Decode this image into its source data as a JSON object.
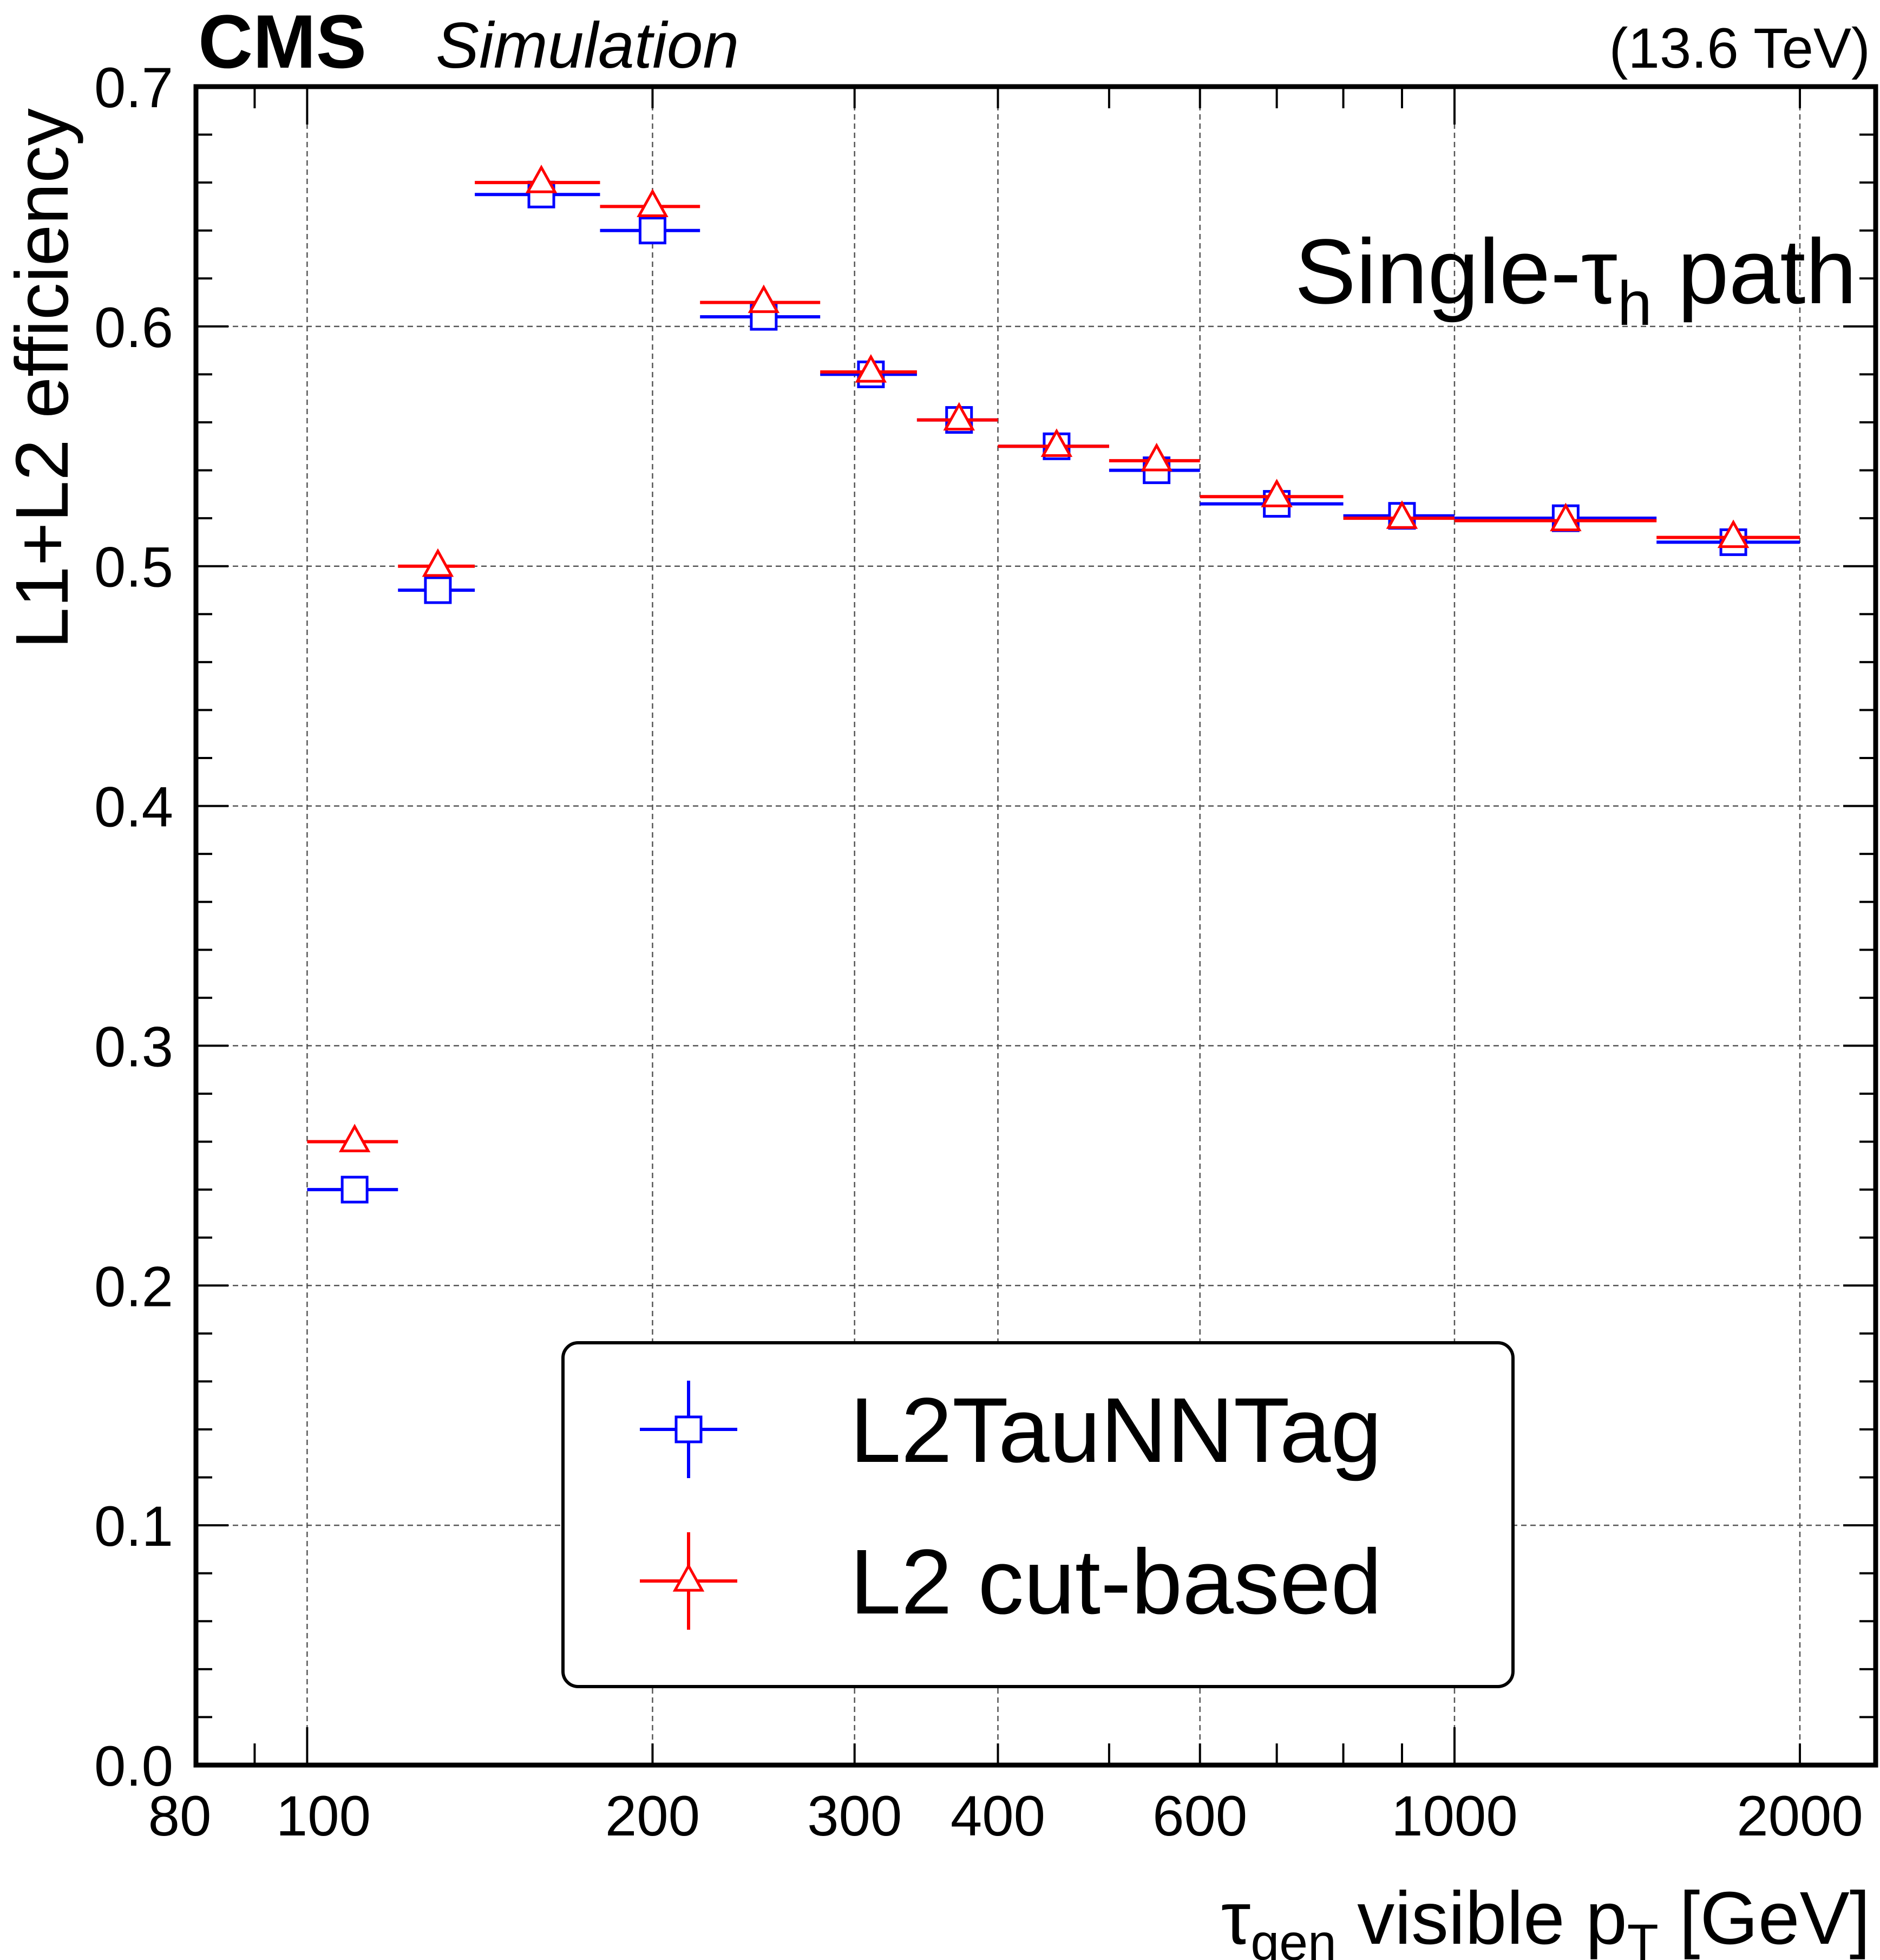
{
  "header": {
    "experiment": "CMS",
    "status": "Simulation",
    "energy": "(13.6 TeV)"
  },
  "annotation": {
    "text_main": "Single-τ",
    "text_sub": "h",
    "text_tail": " path"
  },
  "axes": {
    "x_label_tau": "τ",
    "x_label_sub": "gen",
    "x_label_main": " visible p",
    "x_label_sub2": "T",
    "x_label_unit": " [GeV]",
    "y_label": "L1+L2 efficiency"
  },
  "legend": {
    "position": "bottom-center",
    "entries": [
      "L2TauNNTag",
      "L2 cut-based"
    ]
  },
  "colors": {
    "L2TauNNTag": "#0000ff",
    "L2 cut-based": "#ff0000",
    "grid": "#555555"
  },
  "chart_data": {
    "type": "scatter",
    "x_scale": "log",
    "xlim": [
      80,
      2000
    ],
    "ylim": [
      0.0,
      0.7
    ],
    "grid": true,
    "x_ticks": [
      80,
      100,
      200,
      300,
      400,
      600,
      1000,
      2000
    ],
    "x_tick_labels": [
      "80",
      "100",
      "200",
      "300",
      "400",
      "600",
      "1000",
      "2000"
    ],
    "x_grid": [
      100,
      200,
      300,
      400,
      600,
      1000,
      2000
    ],
    "y_ticks": [
      0.0,
      0.1,
      0.2,
      0.3,
      0.4,
      0.5,
      0.6,
      0.7
    ],
    "y_tick_labels": [
      "0.0",
      "0.1",
      "0.2",
      "0.3",
      "0.4",
      "0.5",
      "0.6",
      "0.7"
    ],
    "bins": [
      [
        100,
        120
      ],
      [
        120,
        140
      ],
      [
        140,
        180
      ],
      [
        180,
        220
      ],
      [
        220,
        280
      ],
      [
        280,
        340
      ],
      [
        340,
        400
      ],
      [
        400,
        500
      ],
      [
        500,
        600
      ],
      [
        600,
        800
      ],
      [
        800,
        1000
      ],
      [
        1000,
        1500
      ],
      [
        1500,
        2000
      ]
    ],
    "series": [
      {
        "name": "L2TauNNTag",
        "marker": "open-square",
        "x": [
          110,
          130,
          160,
          200,
          250,
          310,
          370,
          450,
          550,
          700,
          900,
          1250,
          1750
        ],
        "y": [
          0.24,
          0.49,
          0.655,
          0.64,
          0.604,
          0.58,
          0.561,
          0.55,
          0.54,
          0.526,
          0.521,
          0.52,
          0.51
        ]
      },
      {
        "name": "L2 cut-based",
        "marker": "open-triangle",
        "x": [
          110,
          130,
          160,
          200,
          250,
          310,
          370,
          450,
          550,
          700,
          900,
          1250,
          1750
        ],
        "y": [
          0.26,
          0.5,
          0.66,
          0.65,
          0.61,
          0.581,
          0.561,
          0.55,
          0.544,
          0.529,
          0.52,
          0.519,
          0.512
        ]
      }
    ]
  }
}
